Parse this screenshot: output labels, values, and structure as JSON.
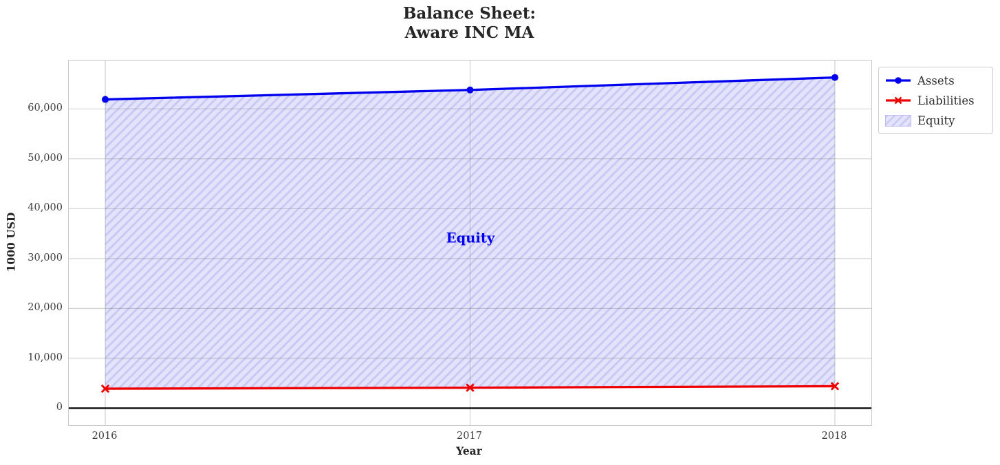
{
  "title": {
    "line1": "Balance Sheet:",
    "line2": "Aware INC MA"
  },
  "axes": {
    "x_label": "Year",
    "y_label": "1000 USD"
  },
  "annotation": {
    "text": "Equity",
    "color": "#0000ee"
  },
  "legend": {
    "position": "upper right outside",
    "items": [
      {
        "label": "Assets",
        "kind": "line-circle",
        "color": "#0000ee"
      },
      {
        "label": "Liabilities",
        "kind": "line-x",
        "color": "#ee0000"
      },
      {
        "label": "Equity",
        "kind": "hatch-swatch",
        "color": "#c9c9f4"
      }
    ]
  },
  "colors": {
    "assets": "#0000ee",
    "liabilities": "#ee0000",
    "equity_fill": "#e3e3fb",
    "equity_hatch": "#c9c9f4",
    "zero_line": "#000000",
    "grid": "#c9c9c9",
    "spine": "#c8c8c8",
    "text": "#262626"
  },
  "chart_data": {
    "type": "line",
    "title": "Balance Sheet:\nAware INC MA",
    "xlabel": "Year",
    "ylabel": "1000 USD",
    "x": [
      2016,
      2017,
      2018
    ],
    "series": [
      {
        "name": "Assets",
        "values": [
          61900,
          63800,
          66300
        ],
        "color": "#0000ee",
        "marker": "circle",
        "linewidth": 3.3
      },
      {
        "name": "Liabilities",
        "values": [
          3900,
          4100,
          4400
        ],
        "color": "#ee0000",
        "marker": "x",
        "linewidth": 3.3
      }
    ],
    "fill_between": {
      "name": "Equity",
      "upper_series": "Assets",
      "lower_series": "Liabilities",
      "equity_values": [
        58000,
        59700,
        61900
      ],
      "hatch": "/"
    },
    "zero_line": 0,
    "xlim": [
      2015.9,
      2018.1
    ],
    "ylim": [
      -3400,
      69700
    ],
    "xticks": [
      2016,
      2017,
      2018
    ],
    "xtick_labels": [
      "2016",
      "2017",
      "2018"
    ],
    "yticks": [
      0,
      10000,
      20000,
      30000,
      40000,
      50000,
      60000
    ],
    "ytick_labels": [
      "0",
      "10,000",
      "20,000",
      "30,000",
      "40,000",
      "50,000",
      "60,000"
    ],
    "grid": true,
    "legend_position": "upper right outside"
  }
}
